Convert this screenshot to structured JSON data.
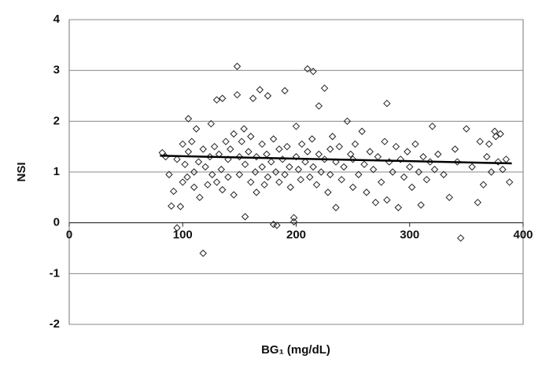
{
  "chart_data": {
    "type": "scatter",
    "xlabel": "BG₁ (mg/dL)",
    "ylabel": "NSI",
    "xlim": [
      0,
      400
    ],
    "xticks": [
      0,
      100,
      200,
      300,
      400
    ],
    "ylim": [
      -2,
      4
    ],
    "yticks": [
      -2,
      -1,
      0,
      1,
      2,
      3,
      4
    ],
    "grid": true,
    "color": "#222222",
    "x": [
      82,
      85,
      88,
      90,
      92,
      95,
      95,
      98,
      100,
      100,
      102,
      104,
      105,
      105,
      108,
      110,
      110,
      112,
      114,
      115,
      118,
      118,
      120,
      122,
      124,
      125,
      126,
      128,
      130,
      130,
      132,
      134,
      135,
      135,
      138,
      140,
      140,
      142,
      145,
      145,
      148,
      148,
      150,
      150,
      152,
      154,
      155,
      155,
      158,
      160,
      160,
      162,
      164,
      165,
      165,
      168,
      170,
      170,
      172,
      174,
      175,
      175,
      178,
      180,
      180,
      182,
      183,
      185,
      185,
      188,
      190,
      190,
      192,
      194,
      195,
      198,
      198,
      200,
      200,
      202,
      204,
      205,
      208,
      210,
      210,
      212,
      214,
      215,
      215,
      218,
      220,
      220,
      222,
      225,
      225,
      228,
      230,
      230,
      232,
      235,
      235,
      238,
      240,
      242,
      245,
      248,
      250,
      250,
      252,
      255,
      258,
      260,
      262,
      265,
      268,
      270,
      272,
      275,
      278,
      280,
      280,
      282,
      285,
      288,
      290,
      292,
      295,
      298,
      300,
      302,
      305,
      308,
      310,
      312,
      315,
      318,
      320,
      322,
      325,
      330,
      335,
      340,
      342,
      345,
      350,
      355,
      360,
      362,
      365,
      368,
      370,
      372,
      375,
      376,
      378,
      380,
      382,
      385,
      388
    ],
    "y": [
      1.38,
      1.3,
      0.95,
      0.33,
      0.62,
      1.25,
      -0.1,
      0.32,
      0.8,
      1.55,
      1.15,
      0.9,
      2.05,
      1.4,
      1.6,
      1.0,
      0.7,
      1.85,
      1.2,
      0.5,
      -0.6,
      1.45,
      1.1,
      0.75,
      1.3,
      1.95,
      0.95,
      1.5,
      2.42,
      0.8,
      1.35,
      1.05,
      2.45,
      0.65,
      1.6,
      1.25,
      0.9,
      1.45,
      1.75,
      0.55,
      3.08,
      2.52,
      1.3,
      0.95,
      1.6,
      1.85,
      0.12,
      1.15,
      1.4,
      0.8,
      1.7,
      2.45,
      1.0,
      1.3,
      0.6,
      2.62,
      1.1,
      1.55,
      0.75,
      1.35,
      2.5,
      0.9,
      1.2,
      -0.03,
      1.65,
      1.0,
      -0.05,
      1.45,
      0.8,
      1.25,
      2.6,
      0.95,
      1.5,
      1.1,
      0.7,
      0.1,
      0.02,
      1.3,
      1.9,
      1.05,
      0.85,
      1.55,
      1.2,
      3.03,
      1.4,
      0.9,
      1.65,
      2.98,
      1.1,
      0.75,
      1.35,
      2.3,
      1.0,
      2.65,
      1.25,
      0.6,
      1.45,
      0.95,
      1.7,
      0.3,
      1.2,
      1.5,
      0.85,
      1.1,
      2.0,
      1.35,
      0.7,
      1.25,
      1.55,
      0.95,
      1.8,
      1.15,
      0.6,
      1.4,
      1.05,
      0.4,
      1.3,
      0.8,
      1.6,
      2.35,
      0.45,
      1.2,
      1.0,
      1.5,
      0.3,
      1.25,
      0.9,
      1.4,
      1.1,
      0.7,
      1.55,
      1.0,
      0.35,
      1.3,
      0.85,
      1.2,
      1.9,
      1.05,
      1.35,
      0.95,
      0.5,
      1.45,
      1.2,
      -0.3,
      1.85,
      1.1,
      0.4,
      1.6,
      0.75,
      1.3,
      1.55,
      1.0,
      1.8,
      1.7,
      1.2,
      1.75,
      1.05,
      1.25,
      0.8
    ],
    "trend": {
      "x": [
        80,
        390
      ],
      "y": [
        1.32,
        1.17
      ]
    }
  }
}
